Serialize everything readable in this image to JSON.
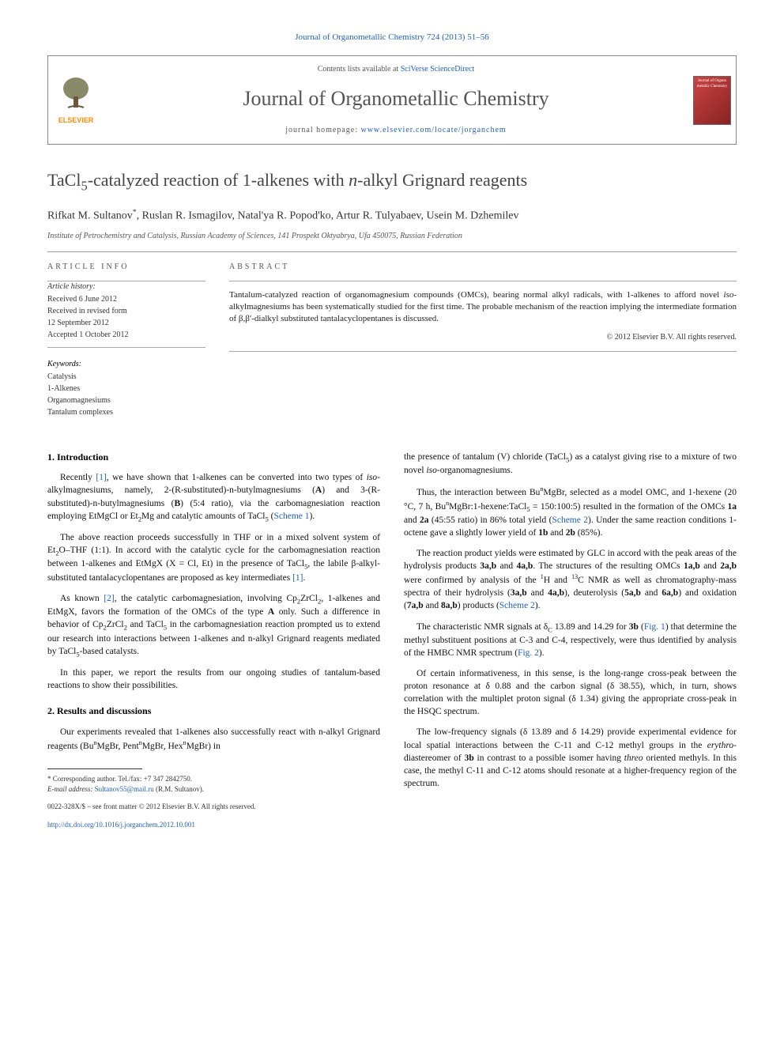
{
  "header": {
    "top_link": "Journal of Organometallic Chemistry 724 (2013) 51–56",
    "contents_prefix": "Contents lists available at ",
    "contents_link": "SciVerse ScienceDirect",
    "journal_name": "Journal of Organometallic Chemistry",
    "homepage_prefix": "journal homepage: ",
    "homepage_link": "www.elsevier.com/locate/jorganchem",
    "elsevier": "ELSEVIER",
    "cover_text": "Journal of Organo metallic Chemistry"
  },
  "article": {
    "title_html": "TaCl<sub>5</sub>-catalyzed reaction of 1-alkenes with <i>n</i>-alkyl Grignard reagents",
    "authors_html": "Rifkat M. Sultanov<sup>*</sup>, Ruslan R. Ismagilov, Natal'ya R. Popod'ko, Artur R. Tulyabaev, Usein M. Dzhemilev",
    "affiliation": "Institute of Petrochemistry and Catalysis, Russian Academy of Sciences, 141 Prospekt Oktyabrya, Ufa 450075, Russian Federation"
  },
  "info": {
    "heading": "ARTICLE INFO",
    "history_label": "Article history:",
    "history": [
      "Received 6 June 2012",
      "Received in revised form",
      "12 September 2012",
      "Accepted 1 October 2012"
    ],
    "keywords_label": "Keywords:",
    "keywords": [
      "Catalysis",
      "1-Alkenes",
      "Organomagnesiums",
      "Tantalum complexes"
    ]
  },
  "abstract": {
    "heading": "ABSTRACT",
    "text_html": "Tantalum-catalyzed reaction of organomagnesium compounds (OMCs), bearing normal alkyl radicals, with 1-alkenes to afford novel <i>iso</i>-alkylmagnesiums has been systematically studied for the first time. The probable mechanism of the reaction implying the intermediate formation of β,β′-dialkyl substituted tantalacyclopentanes is discussed.",
    "copyright": "© 2012 Elsevier B.V. All rights reserved."
  },
  "body": {
    "sec1_heading": "1. Introduction",
    "sec1_paras": [
      "Recently <span class='ref'>[1]</span>, we have shown that 1-alkenes can be converted into two types of <i>iso</i>-alkylmagnesiums, namely, 2-(R-substituted)-n-butylmagnesiums (<b>A</b>) and 3-(R-substituted)-n-butylmagnesiums (<b>B</b>) (5:4 ratio), via the carbomagnesiation reaction employing EtMgCl or Et<sub>2</sub>Mg and catalytic amounts of TaCl<sub>5</sub> (<span class='ref'>Scheme 1</span>).",
      "The above reaction proceeds successfully in THF or in a mixed solvent system of Et<sub>2</sub>O–THF (1:1). In accord with the catalytic cycle for the carbomagnesiation reaction between 1-alkenes and EtMgX (X = Cl, Et) in the presence of TaCl<sub>5</sub>, the labile β-alkyl-substituted tantalacyclopentanes are proposed as key intermediates <span class='ref'>[1]</span>.",
      "As known <span class='ref'>[2]</span>, the catalytic carbomagnesiation, involving Cp<sub>2</sub>ZrCl<sub>2</sub>, 1-alkenes and EtMgX, favors the formation of the OMCs of the type <b>A</b> only. Such a difference in behavior of Cp<sub>2</sub>ZrCl<sub>2</sub> and TaCl<sub>5</sub> in the carbomagnesiation reaction prompted us to extend our research into interactions between 1-alkenes and n-alkyl Grignard reagents mediated by TaCl<sub>5</sub>-based catalysts.",
      "In this paper, we report the results from our ongoing studies of tantalum-based reactions to show their possibilities."
    ],
    "sec2_heading": "2. Results and discussions",
    "sec2_paras_left": [
      "Our experiments revealed that 1-alkenes also successfully react with n-alkyl Grignard reagents (Bu<sup>n</sup>MgBr, Pent<sup>n</sup>MgBr, Hex<sup>n</sup>MgBr) in"
    ],
    "sec2_paras_right": [
      "the presence of tantalum (V) chloride (TaCl<sub>5</sub>) as a catalyst giving rise to a mixture of two novel <i>iso</i>-organomagnesiums.",
      "Thus, the interaction between Bu<sup>n</sup>MgBr, selected as a model OMC, and 1-hexene (20 °C, 7 h, Bu<sup>n</sup>MgBr:1-hexene:TaCl<sub>5</sub> = 150:100:5) resulted in the formation of the OMCs <b>1a</b> and <b>2a</b> (45:55 ratio) in 86% total yield (<span class='ref'>Scheme 2</span>). Under the same reaction conditions 1-octene gave a slightly lower yield of <b>1b</b> and <b>2b</b> (85%).",
      "The reaction product yields were estimated by GLC in accord with the peak areas of the hydrolysis products <b>3a,b</b> and <b>4a,b</b>. The structures of the resulting OMCs <b>1a,b</b> and <b>2a,b</b> were confirmed by analysis of the <sup>1</sup>H and <sup>13</sup>C NMR as well as chromatography-mass spectra of their hydrolysis (<b>3a,b</b> and <b>4a,b</b>), deuterolysis (<b>5a,b</b> and <b>6a,b</b>) and oxidation (<b>7a,b</b> and <b>8a,b</b>) products (<span class='ref'>Scheme 2</span>).",
      "The characteristic NMR signals at δ<sub>C</sub> 13.89 and 14.29 for <b>3b</b> (<span class='ref'>Fig. 1</span>) that determine the methyl substituent positions at C-3 and C-4, respectively, were thus identified by analysis of the HMBC NMR spectrum (<span class='ref'>Fig. 2</span>).",
      "Of certain informativeness, in this sense, is the long-range cross-peak between the proton resonance at δ 0.88 and the carbon signal (δ 38.55), which, in turn, shows correlation with the multiplet proton signal (δ 1.34) giving the appropriate cross-peak in the HSQC spectrum.",
      "The low-frequency signals (δ 13.89 and δ 14.29) provide experimental evidence for local spatial interactions between the C-11 and C-12 methyl groups in the <i>erythro</i>-diastereomer of <b>3b</b> in contrast to a possible isomer having <i>threo</i> oriented methyls. In this case, the methyl C-11 and C-12 atoms should resonate at a higher-frequency region of the spectrum."
    ]
  },
  "footnotes": {
    "corr": "* Corresponding author. Tel./fax: +7 347 2842750.",
    "email_label": "E-mail address:",
    "email": "Sultanov55@mail.ru",
    "email_person": "(R.M. Sultanov)."
  },
  "bottom": {
    "issn": "0022-328X/$ – see front matter © 2012 Elsevier B.V. All rights reserved.",
    "doi": "http://dx.doi.org/10.1016/j.jorganchem.2012.10.001"
  },
  "colors": {
    "link": "#2060c0",
    "text": "#111111",
    "muted": "#555555",
    "border": "#999999",
    "elsevier_orange": "#ff8c00",
    "cover_bg": "#aa3333"
  },
  "fonts": {
    "body_family": "Georgia, 'Times New Roman', serif",
    "title_size_pt": 22,
    "journal_size_pt": 26,
    "body_size_pt": 11.5,
    "footnote_size_pt": 9
  }
}
